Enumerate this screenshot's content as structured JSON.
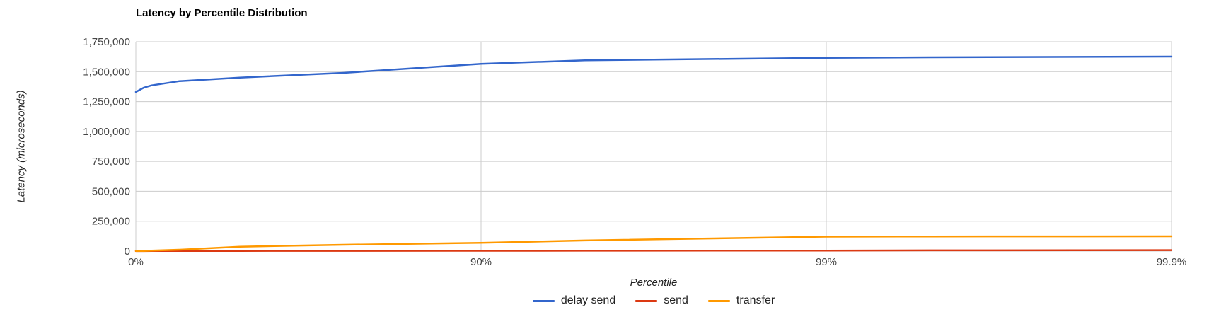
{
  "chart_data": {
    "type": "line",
    "title": "Latency by Percentile Distribution",
    "xlabel": "Percentile",
    "ylabel": "Latency (microseconds)",
    "x_scale": "log-percentile",
    "x_tick_percentiles": [
      0,
      90,
      99,
      99.9
    ],
    "x_tick_labels": [
      "0%",
      "90%",
      "99%",
      "99.9%"
    ],
    "y_ticks": [
      0,
      250000,
      500000,
      750000,
      1000000,
      1250000,
      1500000,
      1750000
    ],
    "y_tick_labels": [
      "0",
      "250,000",
      "500,000",
      "750,000",
      "1,000,000",
      "1,250,000",
      "1,500,000",
      "1,750,000"
    ],
    "ylim": [
      0,
      1750000
    ],
    "grid": true,
    "legend_position": "bottom",
    "gridline_color": "#cccccc",
    "percentiles": [
      0,
      5,
      10,
      25,
      50,
      75,
      90,
      95,
      99,
      99.5,
      99.9
    ],
    "series": [
      {
        "name": "delay send",
        "color": "#3366CC",
        "values": [
          1330000,
          1365000,
          1385000,
          1420000,
          1450000,
          1490000,
          1565000,
          1595000,
          1615000,
          1620000,
          1626000
        ]
      },
      {
        "name": "send",
        "color": "#DC3912",
        "values": [
          500,
          700,
          900,
          1200,
          1800,
          2200,
          2800,
          3500,
          5000,
          6500,
          8000
        ]
      },
      {
        "name": "transfer",
        "color": "#FF9900",
        "values": [
          1000,
          2000,
          4000,
          12000,
          37000,
          53000,
          69000,
          89000,
          121000,
          123000,
          124000
        ]
      }
    ]
  }
}
